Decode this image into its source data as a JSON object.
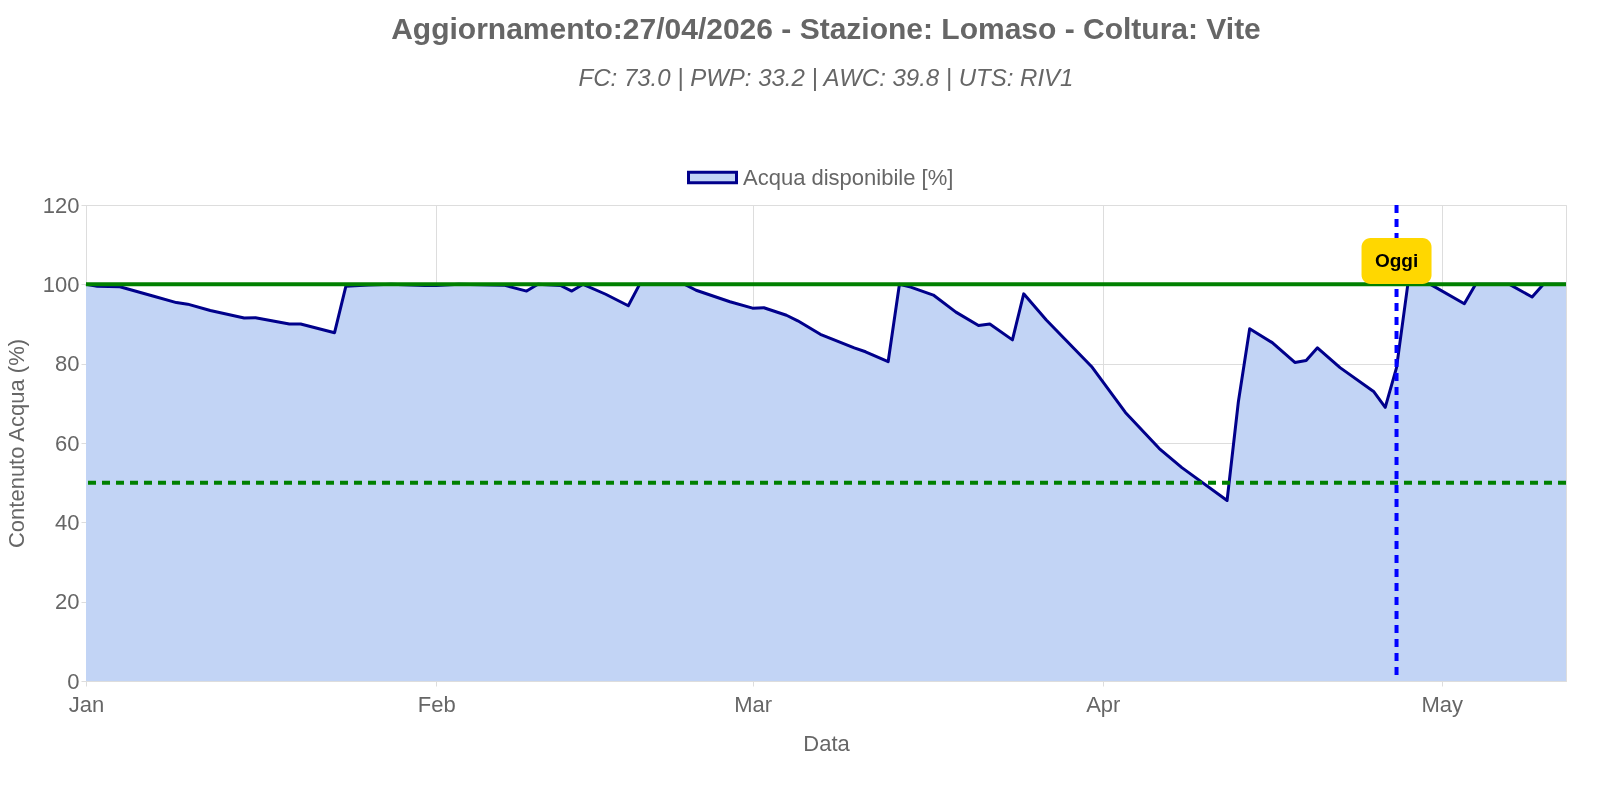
{
  "chart_data": {
    "type": "area",
    "title": "Aggiornamento:27/04/2026 - Stazione: Lomaso - Coltura: Vite",
    "subtitle": "FC: 73.0 | PWP: 33.2 | AWC: 39.8 | UTS: RIV1",
    "xlabel": "Data",
    "ylabel": "Contenuto Acqua (%)",
    "x": [
      "2026-01-01",
      "2026-01-02",
      "2026-01-04",
      "2026-01-07",
      "2026-01-09",
      "2026-01-10",
      "2026-01-12",
      "2026-01-15",
      "2026-01-16",
      "2026-01-19",
      "2026-01-20",
      "2026-01-23",
      "2026-01-24",
      "2026-01-26",
      "2026-01-28",
      "2026-01-31",
      "2026-02-01",
      "2026-02-03",
      "2026-02-07",
      "2026-02-09",
      "2026-02-10",
      "2026-02-12",
      "2026-02-13",
      "2026-02-14",
      "2026-02-16",
      "2026-02-18",
      "2026-02-19",
      "2026-02-23",
      "2026-02-24",
      "2026-02-27",
      "2026-03-01",
      "2026-03-02",
      "2026-03-04",
      "2026-03-05",
      "2026-03-07",
      "2026-03-10",
      "2026-03-11",
      "2026-03-13",
      "2026-03-14",
      "2026-03-15",
      "2026-03-17",
      "2026-03-19",
      "2026-03-21",
      "2026-03-22",
      "2026-03-24",
      "2026-03-25",
      "2026-03-27",
      "2026-03-31",
      "2026-04-03",
      "2026-04-06",
      "2026-04-08",
      "2026-04-12",
      "2026-04-13",
      "2026-04-14",
      "2026-04-16",
      "2026-04-18",
      "2026-04-19",
      "2026-04-20",
      "2026-04-22",
      "2026-04-25",
      "2026-04-26",
      "2026-04-27",
      "2026-04-28",
      "2026-04-30",
      "2026-05-03",
      "2026-05-04",
      "2026-05-07",
      "2026-05-09",
      "2026-05-10",
      "2026-05-12"
    ],
    "series": [
      {
        "name": "Acqua disponibile [%]",
        "color": "#00008b",
        "values": [
          100,
          99.5,
          99.4,
          97,
          95.4,
          95,
          93.4,
          91.5,
          91.6,
          90,
          90,
          87.8,
          99.5,
          99.8,
          100,
          99.7,
          99.7,
          100,
          99.8,
          98.3,
          100,
          99.7,
          98.3,
          100,
          97.5,
          94.6,
          100,
          100,
          98.5,
          95.6,
          94,
          94.1,
          92.2,
          90.8,
          87.4,
          84,
          83,
          80.5,
          100,
          99.3,
          97.3,
          93,
          89.6,
          90,
          86,
          97.6,
          91,
          79.3,
          67.7,
          58.6,
          53.8,
          45.5,
          70.4,
          88.8,
          85.3,
          80.3,
          80.8,
          84,
          79,
          72.9,
          69,
          79,
          100,
          100,
          95.1,
          100,
          100,
          96.8,
          100,
          100
        ]
      }
    ],
    "xlim": [
      "2026-01-01",
      "2026-05-12"
    ],
    "xticks": [
      {
        "value": "2026-01-01",
        "label": "Jan"
      },
      {
        "value": "2026-02-01",
        "label": "Feb"
      },
      {
        "value": "2026-03-01",
        "label": "Mar"
      },
      {
        "value": "2026-04-01",
        "label": "Apr"
      },
      {
        "value": "2026-05-01",
        "label": "May"
      }
    ],
    "ylim": [
      0,
      120
    ],
    "yticks": [
      0,
      20,
      40,
      60,
      80,
      100,
      120
    ],
    "ref_lines": [
      {
        "axis": "y",
        "value": 100,
        "color": "#008000",
        "line_style": "solid"
      },
      {
        "axis": "y",
        "value": 50,
        "color": "#008000",
        "line_style": "dashed"
      },
      {
        "axis": "x",
        "value": "2026-04-27",
        "label": "Oggi",
        "color": "#0000ff",
        "line_style": "dashed"
      }
    ],
    "grid": true,
    "legend": "top",
    "marker": "none",
    "line_style": "solid"
  }
}
